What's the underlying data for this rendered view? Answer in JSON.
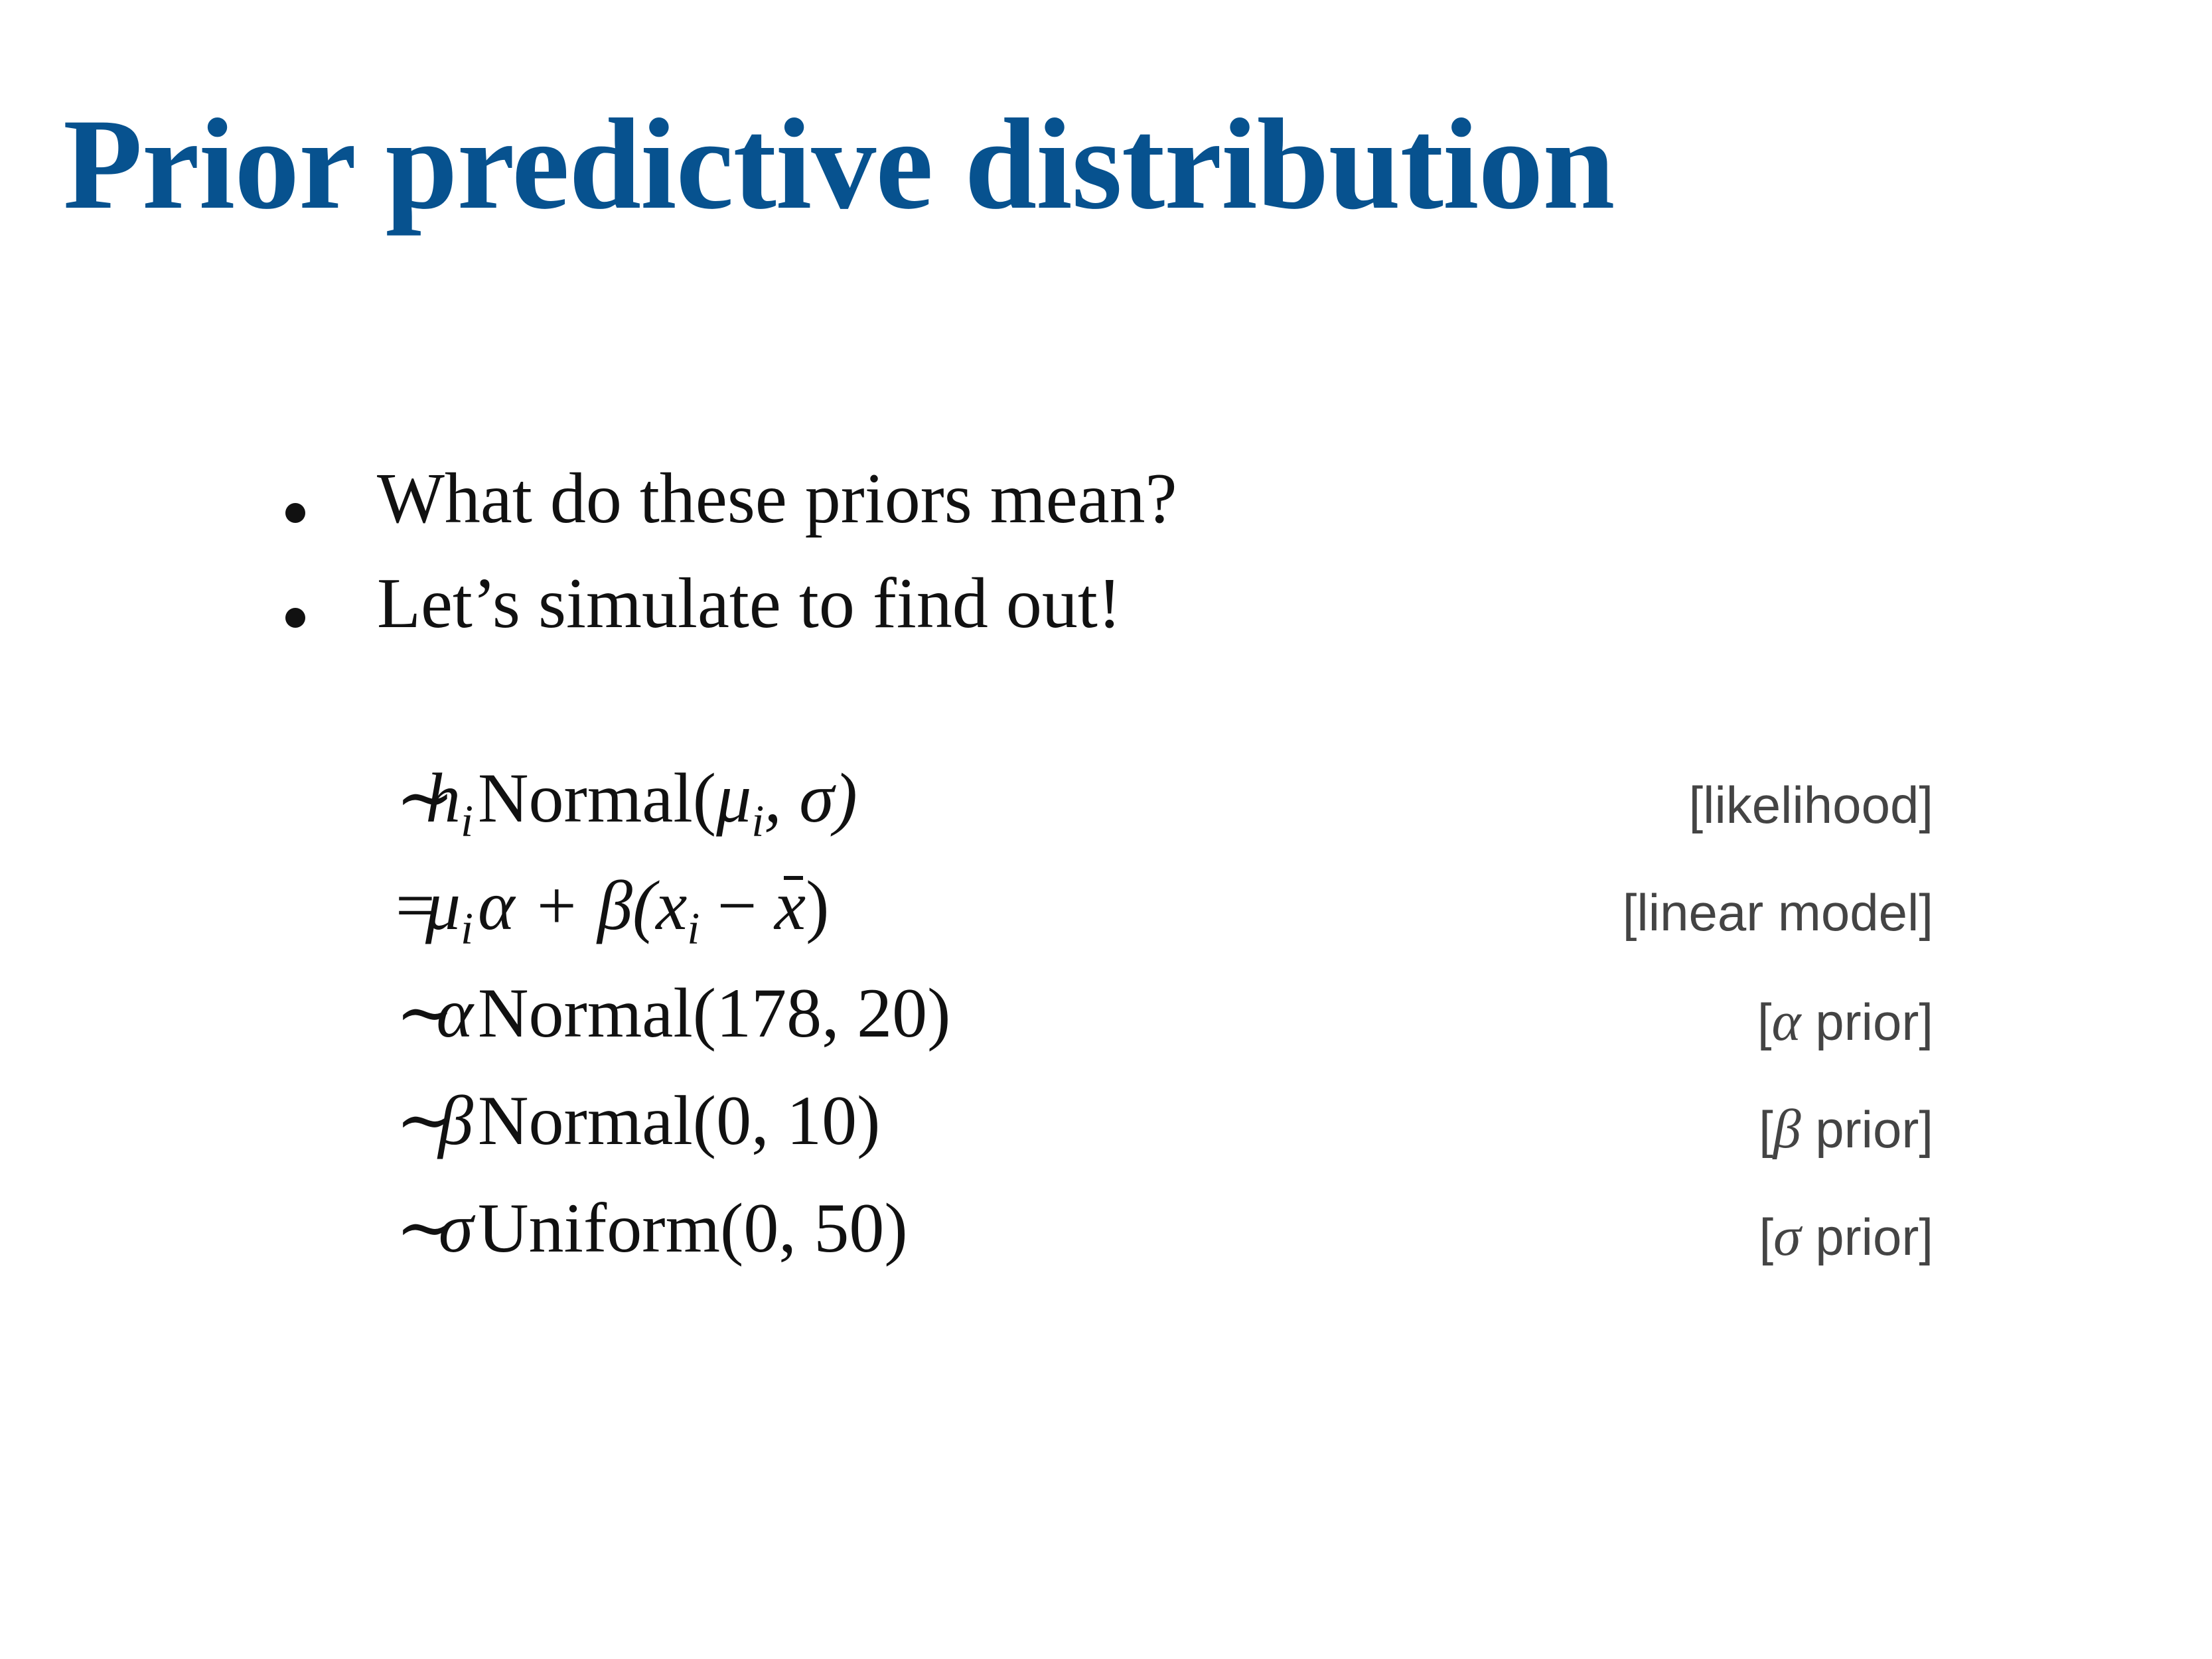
{
  "slide": {
    "title": "Prior predictive distribution",
    "title_color": "#07528f"
  },
  "bullets": [
    "What do these priors mean?",
    "Let’s simulate to find out!"
  ],
  "equations": [
    {
      "lhs_var": "h",
      "lhs_sub": "i",
      "op": "∼",
      "rhs_pre": "Normal(",
      "rhs_mu": "μ",
      "rhs_mu_sub": "i",
      "rhs_post": ", σ)",
      "comment": "[likelihood]"
    },
    {
      "lhs_var": "μ",
      "lhs_sub": "i",
      "op": "=",
      "rhs_a": "α + β(",
      "rhs_x": "x",
      "rhs_x_sub": "i",
      "rhs_minus": " − ",
      "rhs_xbar": "x",
      "rhs_close": ")",
      "comment": "[linear model]"
    },
    {
      "lhs_var": "α",
      "op": "∼",
      "rhs": "Normal(178, 20)",
      "comment_pre": "[",
      "comment_greek": "α",
      "comment_post": " prior]"
    },
    {
      "lhs_var": "β",
      "op": "∼",
      "rhs": "Normal(0, 10)",
      "comment_pre": "[",
      "comment_greek": "β",
      "comment_post": " prior]"
    },
    {
      "lhs_var": "σ",
      "op": "∼",
      "rhs": "Uniform(0, 50)",
      "comment_pre": "[",
      "comment_greek": "σ",
      "comment_post": " prior]"
    }
  ]
}
